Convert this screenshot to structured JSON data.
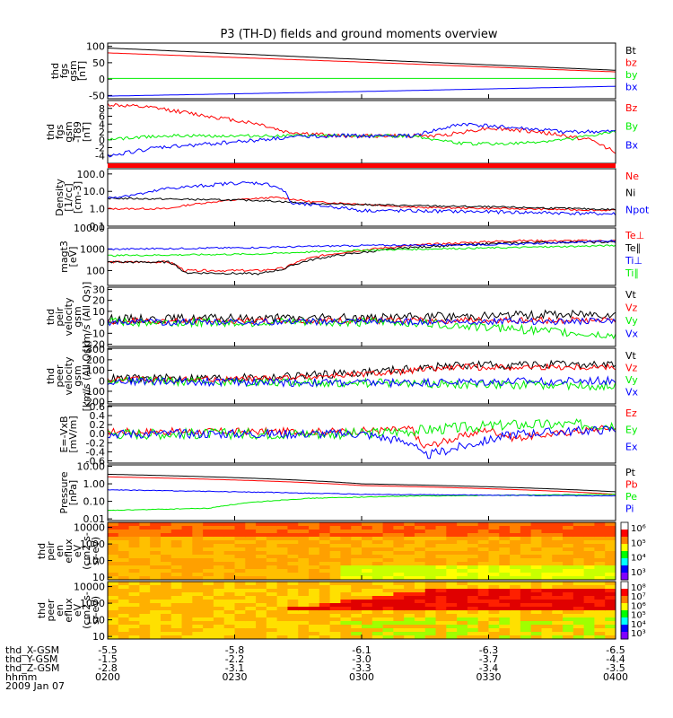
{
  "title": "P3 (TH-D) fields and ground moments overview",
  "colors": {
    "black": "#000000",
    "red": "#ff0000",
    "green": "#00ee00",
    "blue": "#0000ff"
  },
  "chart_data": [
    {
      "type": "line",
      "ylabel": [
        "thd",
        "fgs",
        "gsm",
        "[nT]"
      ],
      "ylim": [
        -60,
        110
      ],
      "yticks": [
        "100",
        "50",
        "0",
        "-50"
      ],
      "series": [
        {
          "name": "Bt",
          "color": "black",
          "x": [
            0,
            0.5,
            1
          ],
          "y": [
            95,
            60,
            27
          ],
          "noise": 0
        },
        {
          "name": "bz",
          "color": "red",
          "x": [
            0,
            0.5,
            1
          ],
          "y": [
            80,
            52,
            22
          ],
          "noise": 0
        },
        {
          "name": "by",
          "color": "green",
          "x": [
            0,
            1
          ],
          "y": [
            2,
            2
          ],
          "noise": 0
        },
        {
          "name": "bx",
          "color": "blue",
          "x": [
            0,
            0.5,
            1
          ],
          "y": [
            -52,
            -38,
            -22
          ],
          "noise": 0
        }
      ]
    },
    {
      "type": "line",
      "ylabel": [
        "thd",
        "fgs",
        "gsm",
        "-T89",
        "[nT]"
      ],
      "ylim": [
        -6,
        10
      ],
      "yticks": [
        "8",
        "6",
        "4",
        "2",
        "0",
        "-2",
        "-4"
      ],
      "series": [
        {
          "name": "Bz",
          "color": "red",
          "x": [
            0,
            0.05,
            0.1,
            0.2,
            0.3,
            0.35,
            0.45,
            0.55,
            0.65,
            0.75,
            0.85,
            0.95,
            1
          ],
          "y": [
            9,
            8.5,
            8,
            6,
            4,
            2,
            1,
            1,
            1,
            3,
            2,
            0,
            -3
          ],
          "noise": 0.5
        },
        {
          "name": "By",
          "color": "green",
          "x": [
            0,
            0.1,
            0.3,
            0.5,
            0.6,
            0.7,
            0.8,
            0.9,
            1
          ],
          "y": [
            0,
            1,
            1,
            1,
            1,
            -1,
            -1,
            0,
            2
          ],
          "noise": 0.4
        },
        {
          "name": "Bx",
          "color": "blue",
          "x": [
            0,
            0.1,
            0.2,
            0.3,
            0.4,
            0.5,
            0.6,
            0.7,
            0.8,
            0.9,
            1
          ],
          "y": [
            -4,
            -2,
            -1,
            0,
            1,
            1,
            1,
            4,
            3,
            2,
            2
          ],
          "noise": 0.5
        }
      ]
    },
    {
      "type": "line",
      "ylabel": [
        "Density",
        "[1/cc]",
        "[cm-3]"
      ],
      "log": true,
      "ylim": [
        0.1,
        200
      ],
      "yticks": [
        "100.0",
        "10.0",
        "1.0",
        "0.1"
      ],
      "series": [
        {
          "name": "Ne",
          "color": "red",
          "x": [
            0,
            0.12,
            0.18,
            0.3,
            0.33,
            0.4,
            0.6,
            1
          ],
          "y": [
            1.0,
            1.0,
            2.0,
            4.0,
            4.5,
            2.5,
            1.2,
            0.8
          ],
          "noise": 0.05
        },
        {
          "name": "Ni",
          "color": "black",
          "x": [
            0,
            0.3,
            0.4,
            0.6,
            1
          ],
          "y": [
            4.0,
            3.0,
            2.0,
            1.5,
            0.9
          ],
          "noise": 0.05
        },
        {
          "name": "Npot",
          "color": "blue",
          "x": [
            0,
            0.08,
            0.12,
            0.18,
            0.25,
            0.3,
            0.33,
            0.36,
            0.5,
            0.7,
            1
          ],
          "y": [
            4,
            8,
            15,
            20,
            30,
            30,
            20,
            2,
            0.8,
            0.7,
            0.5
          ],
          "noise": 0.1
        }
      ],
      "band_color": "red"
    },
    {
      "type": "line",
      "ylabel": [
        "magt3",
        "[eV]"
      ],
      "log": true,
      "ylim": [
        20,
        10000
      ],
      "yticks": [
        "10000",
        "1000",
        "100"
      ],
      "series": [
        {
          "name": "Te⊥",
          "color": "red",
          "x": [
            0,
            0.12,
            0.15,
            0.3,
            0.35,
            0.5,
            0.6,
            0.8,
            1
          ],
          "y": [
            250,
            250,
            100,
            100,
            130,
            900,
            1500,
            2500,
            2500
          ],
          "noise": 0.05
        },
        {
          "name": "Te∥",
          "color": "black",
          "x": [
            0,
            0.12,
            0.15,
            0.3,
            0.35,
            0.5,
            0.6,
            0.8,
            1
          ],
          "y": [
            250,
            250,
            80,
            70,
            120,
            700,
            1200,
            2000,
            2200
          ],
          "noise": 0.05
        },
        {
          "name": "Ti⊥",
          "color": "blue",
          "x": [
            0,
            0.3,
            0.5,
            0.8,
            1
          ],
          "y": [
            1000,
            1200,
            1500,
            1700,
            2500
          ],
          "noise": 0.04
        },
        {
          "name": "Ti∥",
          "color": "green",
          "x": [
            0,
            0.3,
            0.5,
            0.8,
            1
          ],
          "y": [
            500,
            600,
            900,
            1200,
            1500
          ],
          "noise": 0.04
        }
      ]
    },
    {
      "type": "line",
      "ylabel": [
        "thd",
        "peir",
        "velocity",
        "gsm",
        "[km/s (All Qs)]"
      ],
      "ylim": [
        -22,
        32
      ],
      "yticks": [
        "30",
        "20",
        "10",
        "0",
        "-10",
        "-20"
      ],
      "series": [
        {
          "name": "Vt",
          "color": "black",
          "x": [
            0,
            0.5,
            1
          ],
          "y": [
            3,
            4,
            8
          ],
          "noise": 4
        },
        {
          "name": "Vz",
          "color": "red",
          "x": [
            0,
            1
          ],
          "y": [
            1,
            2
          ],
          "noise": 3
        },
        {
          "name": "Vy",
          "color": "green",
          "x": [
            0,
            0.6,
            1
          ],
          "y": [
            0,
            0,
            -12
          ],
          "noise": 4
        },
        {
          "name": "Vx",
          "color": "blue",
          "x": [
            0,
            1
          ],
          "y": [
            0,
            1
          ],
          "noise": 3
        }
      ]
    },
    {
      "type": "line",
      "ylabel": [
        "thd",
        "peer",
        "velocity",
        "gsm",
        "[km/s (All Qs)]"
      ],
      "ylim": [
        -220,
        310
      ],
      "yticks": [
        "300",
        "200",
        "100",
        "0",
        "-100",
        "-200"
      ],
      "series": [
        {
          "name": "Vt",
          "color": "black",
          "x": [
            0,
            0.3,
            0.5,
            0.7,
            1
          ],
          "y": [
            20,
            30,
            80,
            150,
            150
          ],
          "noise": 40
        },
        {
          "name": "Vz",
          "color": "red",
          "x": [
            0,
            0.3,
            0.5,
            0.7,
            1
          ],
          "y": [
            10,
            20,
            60,
            130,
            130
          ],
          "noise": 30
        },
        {
          "name": "Vy",
          "color": "green",
          "x": [
            0,
            0.5,
            1
          ],
          "y": [
            0,
            -20,
            -50
          ],
          "noise": 40
        },
        {
          "name": "Vx",
          "color": "blue",
          "x": [
            0,
            0.5,
            1
          ],
          "y": [
            0,
            -20,
            0
          ],
          "noise": 40
        }
      ]
    },
    {
      "type": "line",
      "ylabel": [
        "E=-VxB",
        "[mV/m]"
      ],
      "ylim": [
        -0.65,
        0.62
      ],
      "yticks": [
        "0.6",
        "0.4",
        "0.2",
        "0.0",
        "-0.2",
        "-0.4",
        "-0.6"
      ],
      "series": [
        {
          "name": "Ez",
          "color": "red",
          "x": [
            0,
            0.45,
            0.6,
            0.62,
            0.75,
            0.8,
            1
          ],
          "y": [
            0.05,
            0.05,
            0.1,
            -0.3,
            0.1,
            -0.1,
            0.15
          ],
          "noise": 0.08
        },
        {
          "name": "Ey",
          "color": "green",
          "x": [
            0,
            0.5,
            0.8,
            1
          ],
          "y": [
            0.0,
            0.0,
            0.2,
            0.2
          ],
          "noise": 0.12
        },
        {
          "name": "Ex",
          "color": "blue",
          "x": [
            0,
            0.5,
            0.6,
            0.62,
            0.8,
            1
          ],
          "y": [
            0.0,
            0.0,
            -0.2,
            -0.5,
            0.0,
            0.1
          ],
          "noise": 0.1
        }
      ]
    },
    {
      "type": "line",
      "ylabel": [
        "Pressure",
        "[nPa]"
      ],
      "log": true,
      "ylim": [
        0.008,
        12
      ],
      "yticks": [
        "10.00",
        "1.00",
        "0.10",
        "0.01"
      ],
      "series": [
        {
          "name": "Pt",
          "color": "black",
          "x": [
            0,
            0.5,
            1
          ],
          "y": [
            3.5,
            1.0,
            0.35
          ],
          "noise": 0
        },
        {
          "name": "Pb",
          "color": "red",
          "x": [
            0,
            0.5,
            1
          ],
          "y": [
            2.5,
            0.8,
            0.25
          ],
          "noise": 0
        },
        {
          "name": "Pe",
          "color": "green",
          "x": [
            0,
            0.2,
            0.4,
            0.6,
            1
          ],
          "y": [
            0.03,
            0.04,
            0.15,
            0.2,
            0.25
          ],
          "noise": 0.02
        },
        {
          "name": "Pi",
          "color": "blue",
          "x": [
            0,
            0.5,
            1
          ],
          "y": [
            0.45,
            0.25,
            0.2
          ],
          "noise": 0.02
        }
      ]
    },
    {
      "type": "heatmap",
      "ylabel": [
        "thd",
        "peir",
        "en",
        "eflux",
        "eV",
        "(cm2-s-",
        "sr-eV)"
      ],
      "yticks": [
        "10000",
        "1000",
        "100",
        "10"
      ],
      "colorbar": [
        "10⁶",
        "10⁵",
        "10⁴",
        "10³"
      ],
      "seed": 3
    },
    {
      "type": "heatmap",
      "ylabel": [
        "thd",
        "peer",
        "en",
        "eflux",
        "eV",
        "(cm2-s-",
        "sr-eV)"
      ],
      "yticks": [
        "10000",
        "1000",
        "100",
        "10"
      ],
      "colorbar": [
        "10⁸",
        "10⁷",
        "10⁶",
        "10⁵",
        "10⁴",
        "10³"
      ],
      "seed": 7
    }
  ],
  "xaxis": {
    "rows": [
      {
        "label": "thd_X-GSM",
        "values": [
          "-5.5",
          "-5.8",
          "-6.1",
          "-6.3",
          "-6.5"
        ]
      },
      {
        "label": "thd_Y-GSM",
        "values": [
          "-1.5",
          "-2.2",
          "-3.0",
          "-3.7",
          "-4.4"
        ]
      },
      {
        "label": "thd_Z-GSM",
        "values": [
          "-2.8",
          "-3.1",
          "-3.3",
          "-3.4",
          "-3.5"
        ]
      },
      {
        "label": "hhmm",
        "values": [
          "0200",
          "0230",
          "0300",
          "0330",
          "0400"
        ]
      }
    ],
    "date": "2009 Jan 07"
  }
}
